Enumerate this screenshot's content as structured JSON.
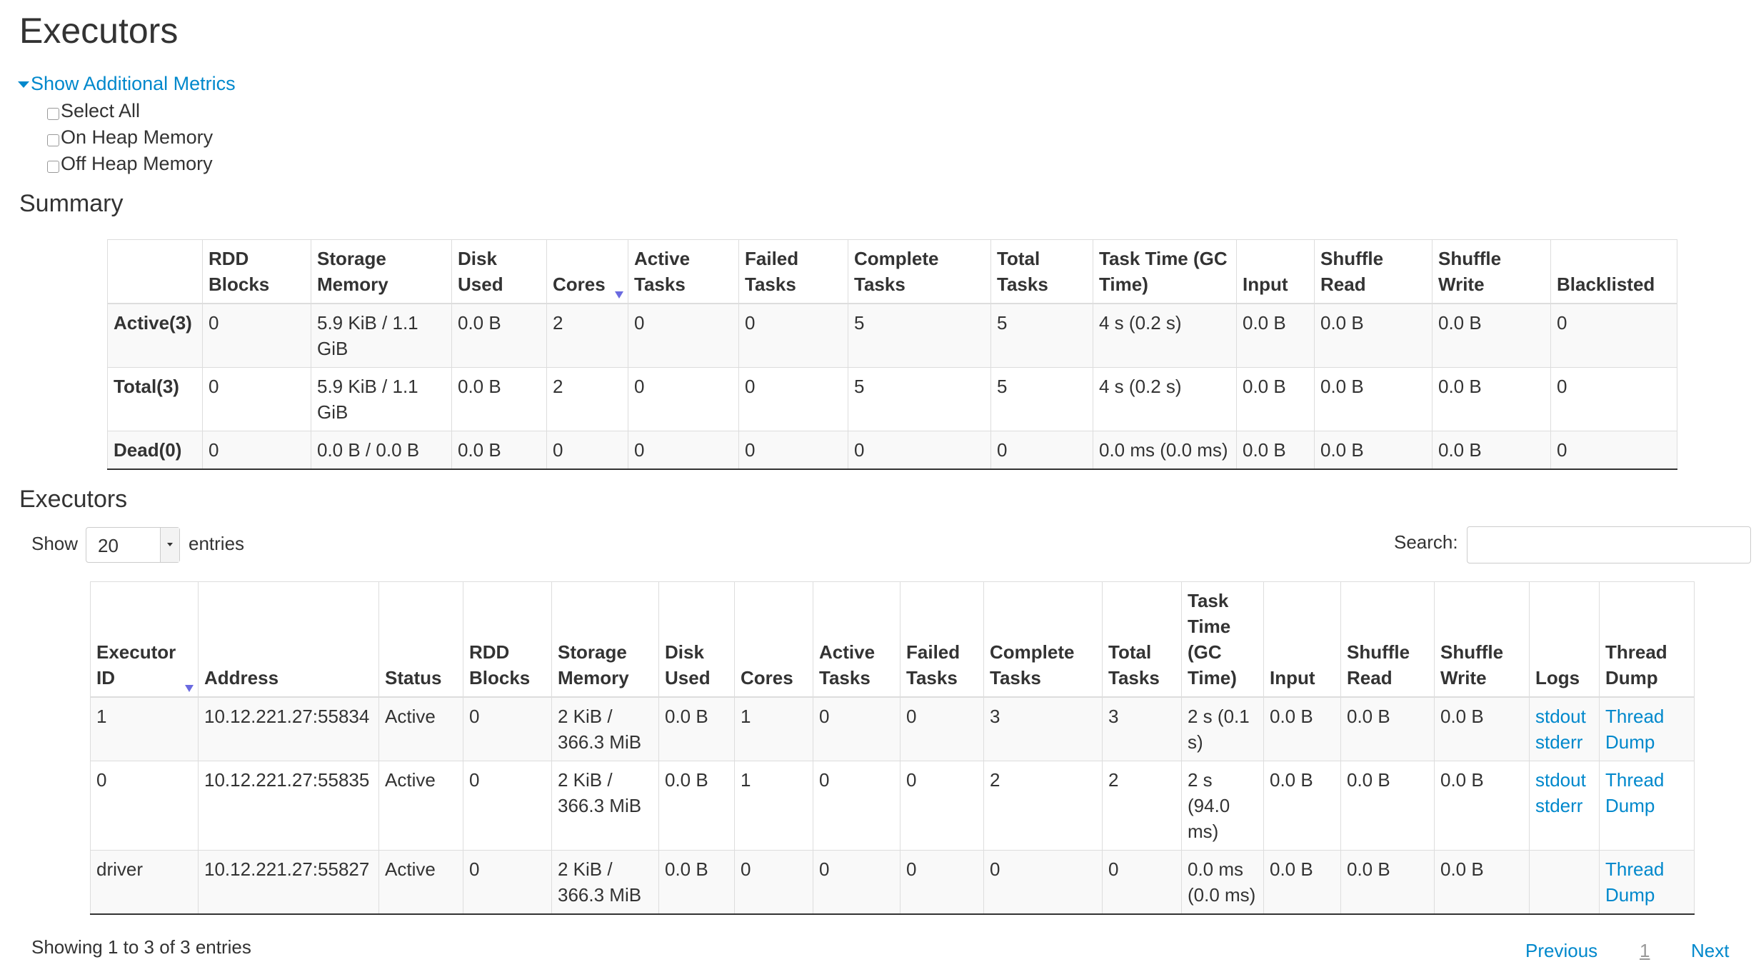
{
  "page_title": "Executors",
  "metrics": {
    "toggle_label": "Show Additional Metrics",
    "options": [
      {
        "label": "Select All",
        "checked": false
      },
      {
        "label": "On Heap Memory",
        "checked": false
      },
      {
        "label": "Off Heap Memory",
        "checked": false
      }
    ]
  },
  "summary": {
    "heading": "Summary",
    "columns": [
      "",
      "RDD Blocks",
      "Storage Memory",
      "Disk Used",
      "Cores",
      "Active Tasks",
      "Failed Tasks",
      "Complete Tasks",
      "Total Tasks",
      "Task Time (GC Time)",
      "Input",
      "Shuffle Read",
      "Shuffle Write",
      "Blacklisted"
    ],
    "rows": [
      [
        "Active(3)",
        "0",
        "5.9 KiB / 1.1 GiB",
        "0.0 B",
        "2",
        "0",
        "0",
        "5",
        "5",
        "4 s (0.2 s)",
        "0.0 B",
        "0.0 B",
        "0.0 B",
        "0"
      ],
      [
        "Total(3)",
        "0",
        "5.9 KiB / 1.1 GiB",
        "0.0 B",
        "2",
        "0",
        "0",
        "5",
        "5",
        "4 s (0.2 s)",
        "0.0 B",
        "0.0 B",
        "0.0 B",
        "0"
      ],
      [
        "Dead(0)",
        "0",
        "0.0 B / 0.0 B",
        "0.0 B",
        "0",
        "0",
        "0",
        "0",
        "0",
        "0.0 ms (0.0 ms)",
        "0.0 B",
        "0.0 B",
        "0.0 B",
        "0"
      ]
    ]
  },
  "executors": {
    "heading": "Executors",
    "show_label": "Show",
    "page_size": "20",
    "entries_label": "entries",
    "search_label": "Search:",
    "search_value": "",
    "columns": [
      "Executor ID",
      "Address",
      "Status",
      "RDD Blocks",
      "Storage Memory",
      "Disk Used",
      "Cores",
      "Active Tasks",
      "Failed Tasks",
      "Complete Tasks",
      "Total Tasks",
      "Task Time (GC Time)",
      "Input",
      "Shuffle Read",
      "Shuffle Write",
      "Logs",
      "Thread Dump"
    ],
    "rows": [
      {
        "cells": [
          "1",
          "10.12.221.27:55834",
          "Active",
          "0",
          "2 KiB / 366.3 MiB",
          "0.0 B",
          "1",
          "0",
          "0",
          "3",
          "3",
          "2 s (0.1 s)",
          "0.0 B",
          "0.0 B",
          "0.0 B"
        ],
        "logs": [
          "stdout",
          "stderr"
        ],
        "thread_dump": "Thread Dump"
      },
      {
        "cells": [
          "0",
          "10.12.221.27:55835",
          "Active",
          "0",
          "2 KiB / 366.3 MiB",
          "0.0 B",
          "1",
          "0",
          "0",
          "2",
          "2",
          "2 s (94.0 ms)",
          "0.0 B",
          "0.0 B",
          "0.0 B"
        ],
        "logs": [
          "stdout",
          "stderr"
        ],
        "thread_dump": "Thread Dump"
      },
      {
        "cells": [
          "driver",
          "10.12.221.27:55827",
          "Active",
          "0",
          "2 KiB / 366.3 MiB",
          "0.0 B",
          "0",
          "0",
          "0",
          "0",
          "0",
          "0.0 ms (0.0 ms)",
          "0.0 B",
          "0.0 B",
          "0.0 B"
        ],
        "logs": [],
        "thread_dump": "Thread Dump"
      }
    ],
    "info": "Showing 1 to 3 of 3 entries",
    "pagination": {
      "previous": "Previous",
      "current": "1",
      "next": "Next"
    }
  },
  "colors": {
    "link": "#0088cc",
    "sort_arrow": "#6a6ae0"
  }
}
